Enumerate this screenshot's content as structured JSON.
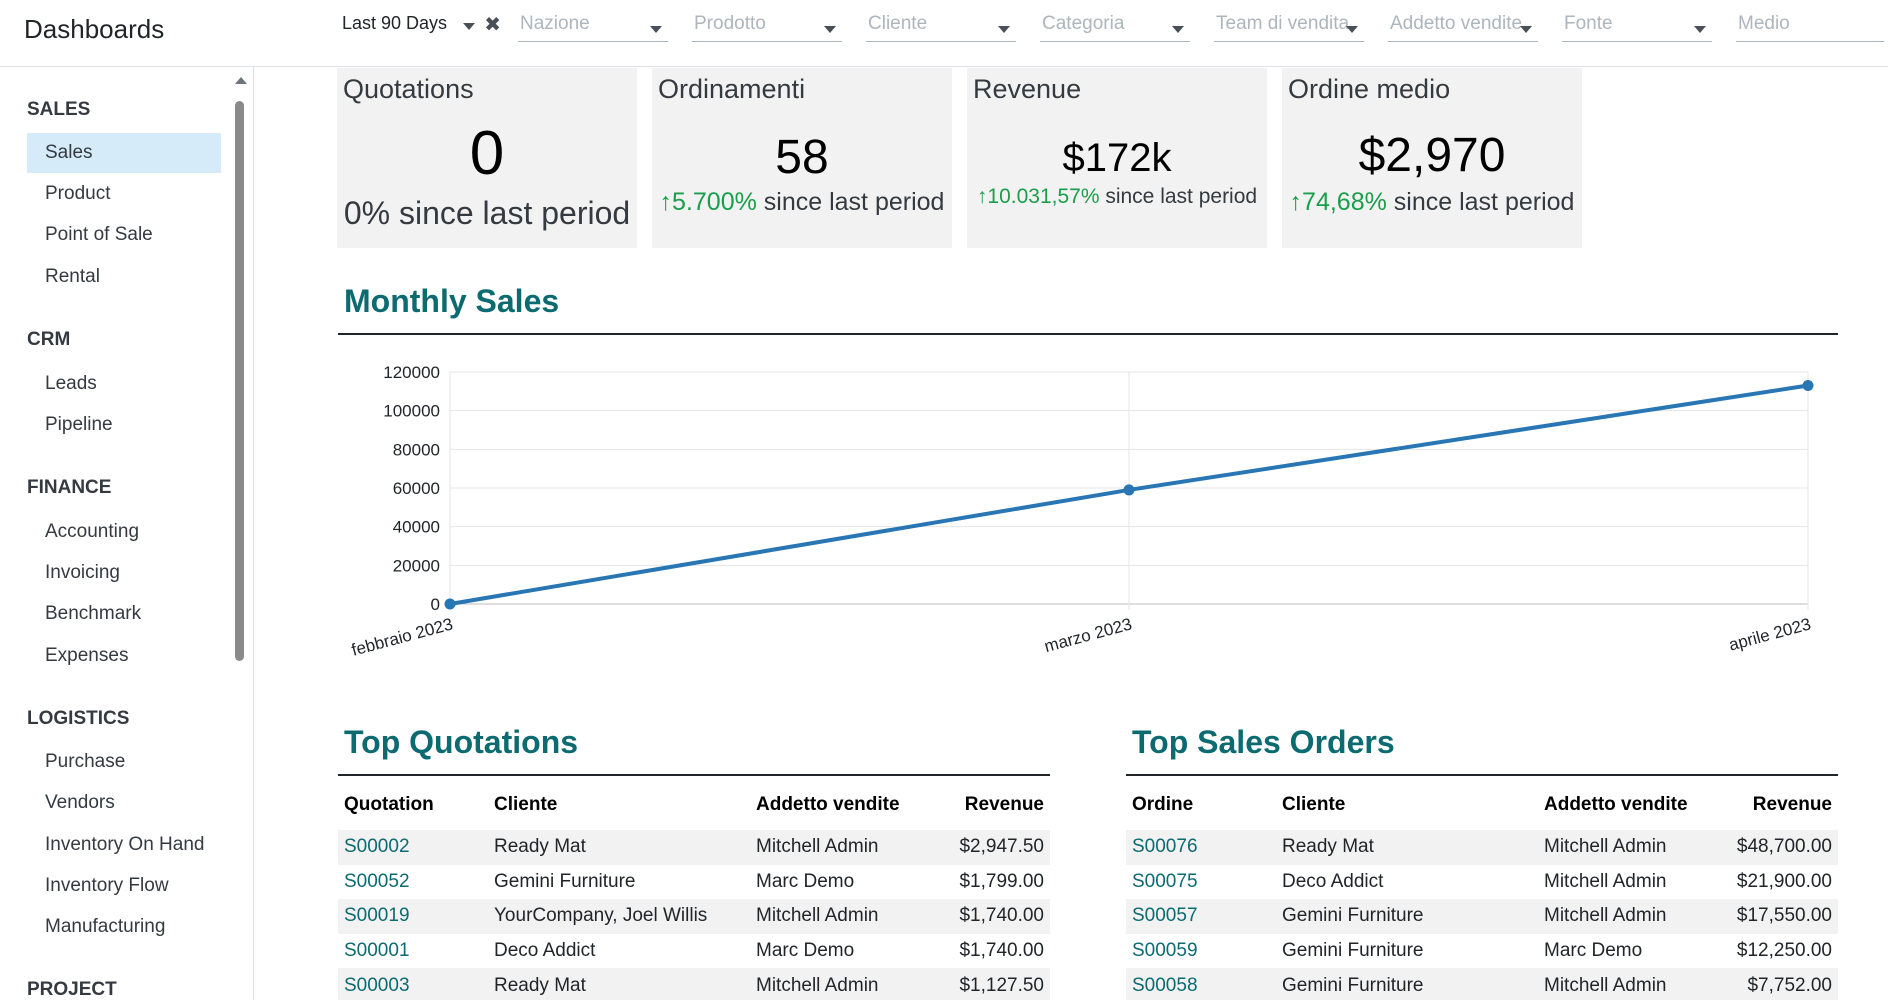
{
  "app": {
    "title": "Dashboards"
  },
  "filters": {
    "date_range": "Last 90 Days",
    "placeholders": [
      "Nazione",
      "Prodotto",
      "Cliente",
      "Categoria",
      "Team di vendita",
      "Addetto vendite",
      "Fonte",
      "Medio"
    ]
  },
  "sidebar": {
    "sections": [
      {
        "title": "SALES",
        "items": [
          "Sales",
          "Product",
          "Point of Sale",
          "Rental"
        ]
      },
      {
        "title": "CRM",
        "items": [
          "Leads",
          "Pipeline"
        ]
      },
      {
        "title": "FINANCE",
        "items": [
          "Accounting",
          "Invoicing",
          "Benchmark",
          "Expenses"
        ]
      },
      {
        "title": "LOGISTICS",
        "items": [
          "Purchase",
          "Vendors",
          "Inventory On Hand",
          "Inventory Flow",
          "Manufacturing"
        ]
      },
      {
        "title": "PROJECT",
        "items": []
      }
    ],
    "active_item": "Sales"
  },
  "kpis": [
    {
      "title": "Quotations",
      "value": "0",
      "arrow": "",
      "change": "0%",
      "suffix": " since last period"
    },
    {
      "title": "Ordinamenti",
      "value": "58",
      "arrow": "↑",
      "change": "5.700%",
      "suffix": " since last period"
    },
    {
      "title": "Revenue",
      "value": "$172k",
      "arrow": "↑",
      "change": "10.031,57%",
      "suffix": " since last period"
    },
    {
      "title": "Ordine medio",
      "value": "$2,970",
      "arrow": "↑",
      "change": "74,68%",
      "suffix": " since last period"
    }
  ],
  "sections": {
    "monthly_sales": "Monthly Sales",
    "top_quotations": "Top Quotations",
    "top_sales_orders": "Top Sales Orders"
  },
  "chart_data": {
    "type": "line",
    "title": "Monthly Sales",
    "categories": [
      "febbraio 2023",
      "marzo 2023",
      "aprile 2023"
    ],
    "series": [
      {
        "values": [
          0,
          59000,
          113000
        ]
      }
    ],
    "ylim": [
      0,
      120000
    ],
    "yticks": [
      0,
      20000,
      40000,
      60000,
      80000,
      100000,
      120000
    ],
    "grid": true,
    "color": "#2876b4"
  },
  "top_quotations": {
    "columns": [
      "Quotation",
      "Cliente",
      "Addetto vendite",
      "Revenue"
    ],
    "rows": [
      [
        "S00002",
        "Ready Mat",
        "Mitchell Admin",
        "$2,947.50"
      ],
      [
        "S00052",
        "Gemini Furniture",
        "Marc Demo",
        "$1,799.00"
      ],
      [
        "S00019",
        "YourCompany, Joel Willis",
        "Mitchell Admin",
        "$1,740.00"
      ],
      [
        "S00001",
        "Deco Addict",
        "Marc Demo",
        "$1,740.00"
      ],
      [
        "S00003",
        "Ready Mat",
        "Mitchell Admin",
        "$1,127.50"
      ]
    ]
  },
  "top_sales_orders": {
    "columns": [
      "Ordine",
      "Cliente",
      "Addetto vendite",
      "Revenue"
    ],
    "rows": [
      [
        "S00076",
        "Ready Mat",
        "Mitchell Admin",
        "$48,700.00"
      ],
      [
        "S00075",
        "Deco Addict",
        "Mitchell Admin",
        "$21,900.00"
      ],
      [
        "S00057",
        "Gemini Furniture",
        "Mitchell Admin",
        "$17,550.00"
      ],
      [
        "S00059",
        "Gemini Furniture",
        "Marc Demo",
        "$12,250.00"
      ],
      [
        "S00058",
        "Gemini Furniture",
        "Mitchell Admin",
        "$7,752.00"
      ]
    ]
  }
}
